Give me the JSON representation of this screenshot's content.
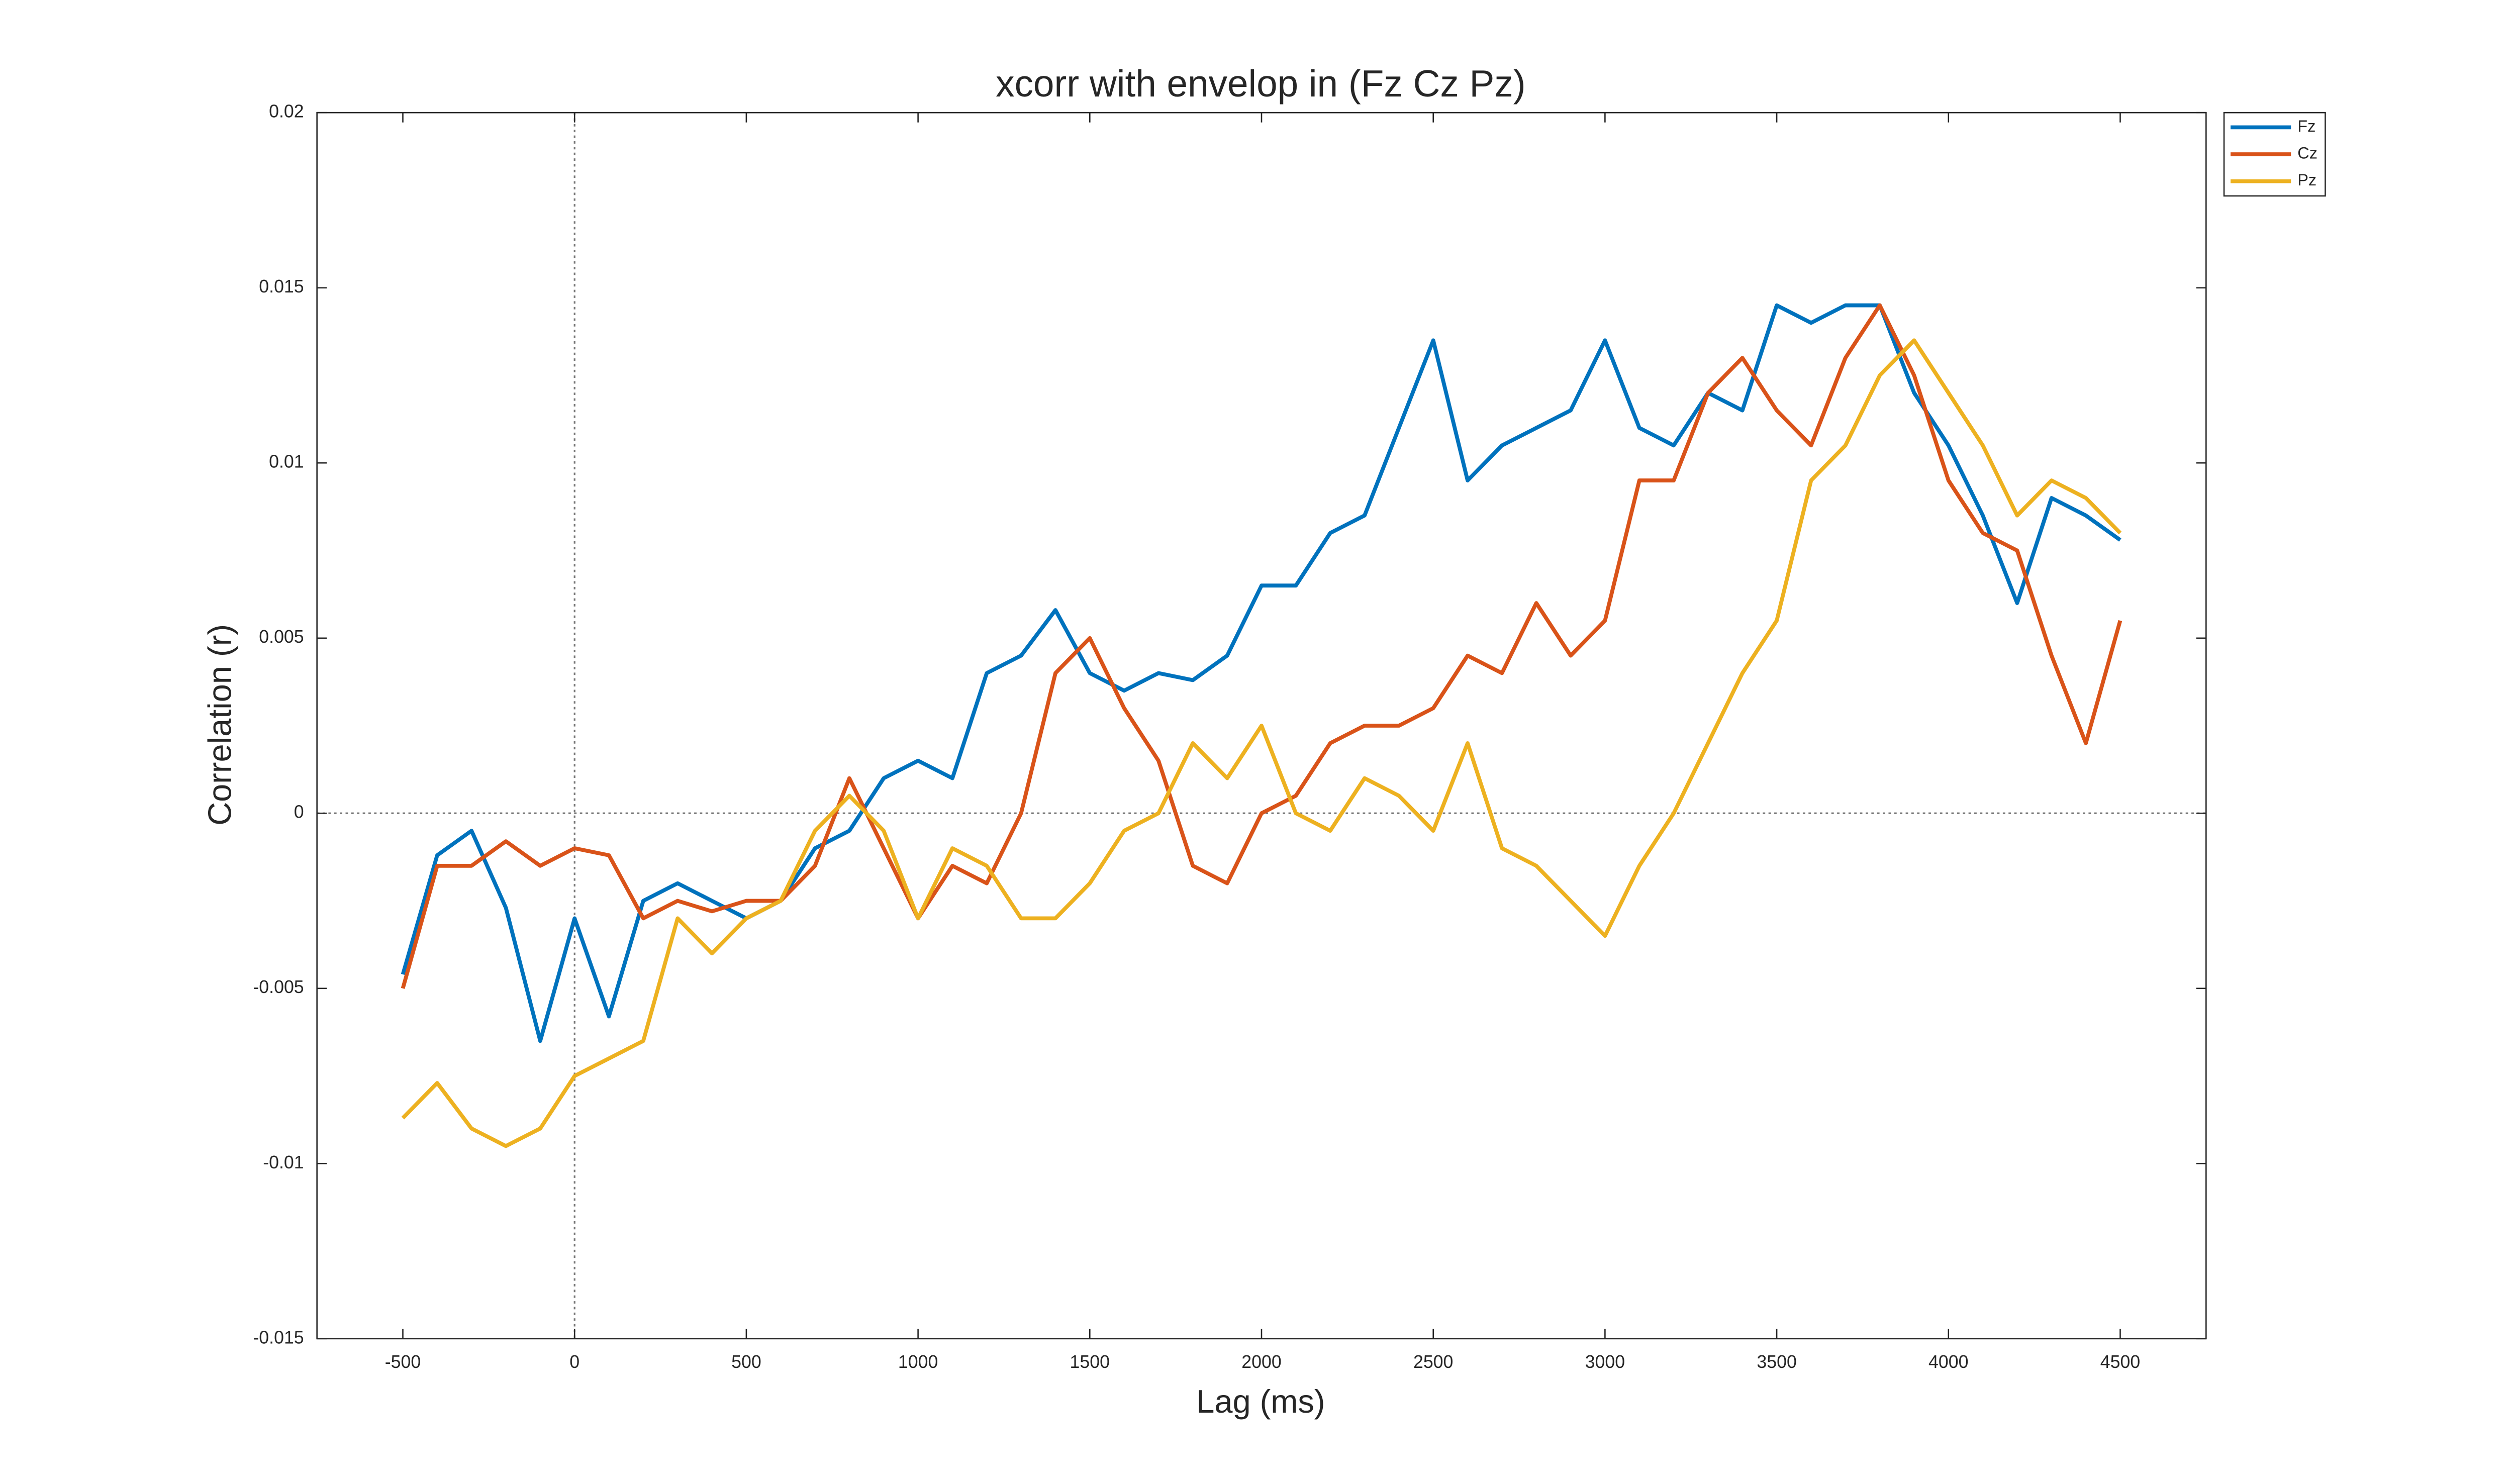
{
  "chart_data": {
    "type": "line",
    "title": "xcorr with envelop in (Fz Cz Pz)",
    "xlabel": "Lag (ms)",
    "ylabel": "Correlation (r)",
    "x": [
      -500,
      -400,
      -300,
      -200,
      -100,
      0,
      100,
      200,
      300,
      400,
      500,
      600,
      700,
      800,
      900,
      1000,
      1100,
      1200,
      1300,
      1400,
      1500,
      1600,
      1700,
      1800,
      1900,
      2000,
      2100,
      2200,
      2300,
      2400,
      2500,
      2600,
      2700,
      2800,
      2900,
      3000,
      3100,
      3200,
      3300,
      3400,
      3500,
      3600,
      3700,
      3800,
      3900,
      4000,
      4100,
      4200,
      4300,
      4400,
      4500
    ],
    "series": [
      {
        "name": "Fz",
        "color": "#0072bd",
        "values": [
          -0.0046,
          -0.0012,
          -0.0005,
          -0.0027,
          -0.0065,
          -0.003,
          -0.0058,
          -0.0025,
          -0.002,
          -0.0025,
          -0.003,
          -0.0025,
          -0.001,
          -0.0005,
          0.001,
          0.0015,
          0.001,
          0.004,
          0.0045,
          0.0058,
          0.004,
          0.0035,
          0.004,
          0.0038,
          0.0045,
          0.0065,
          0.0065,
          0.008,
          0.0085,
          0.011,
          0.0135,
          0.0095,
          0.0105,
          0.011,
          0.0115,
          0.0135,
          0.011,
          0.0105,
          0.012,
          0.0115,
          0.0145,
          0.014,
          0.0145,
          0.0145,
          0.012,
          0.0105,
          0.0085,
          0.006,
          0.009,
          0.0085,
          0.0078
        ]
      },
      {
        "name": "Cz",
        "color": "#d95319",
        "values": [
          -0.005,
          -0.0015,
          -0.0015,
          -0.0008,
          -0.0015,
          -0.001,
          -0.0012,
          -0.003,
          -0.0025,
          -0.0028,
          -0.0025,
          -0.0025,
          -0.0015,
          0.001,
          -0.001,
          -0.003,
          -0.0015,
          -0.002,
          0,
          0.004,
          0.005,
          0.003,
          0.0015,
          -0.0015,
          -0.002,
          0,
          0.0005,
          0.002,
          0.0025,
          0.0025,
          0.003,
          0.0045,
          0.004,
          0.006,
          0.0045,
          0.0055,
          0.0095,
          0.0095,
          0.012,
          0.013,
          0.0115,
          0.0105,
          0.013,
          0.0145,
          0.0125,
          0.0095,
          0.008,
          0.0075,
          0.0045,
          0.002,
          0.0055
        ]
      },
      {
        "name": "Pz",
        "color": "#edb120",
        "values": [
          -0.0087,
          -0.0077,
          -0.009,
          -0.0095,
          -0.009,
          -0.0075,
          -0.007,
          -0.0065,
          -0.003,
          -0.004,
          -0.003,
          -0.0025,
          -0.0005,
          0.0005,
          -0.0005,
          -0.003,
          -0.001,
          -0.0015,
          -0.003,
          -0.003,
          -0.002,
          -0.0005,
          0,
          0.002,
          0.001,
          0.0025,
          0,
          -0.0005,
          0.001,
          0.0005,
          -0.0005,
          0.002,
          -0.001,
          -0.0015,
          -0.0025,
          -0.0035,
          -0.0015,
          0,
          0.002,
          0.004,
          0.0055,
          0.0095,
          0.0105,
          0.0125,
          0.0135,
          0.012,
          0.0105,
          0.0085,
          0.0095,
          0.009,
          0.008
        ]
      }
    ],
    "xlim": [
      -750,
      4750
    ],
    "ylim": [
      -0.015,
      0.02
    ],
    "xticks": [
      -500,
      0,
      500,
      1000,
      1500,
      2000,
      2500,
      3000,
      3500,
      4000,
      4500
    ],
    "yticks": [
      -0.015,
      -0.01,
      -0.005,
      0,
      0.005,
      0.01,
      0.015,
      0.02
    ],
    "zero_lines": true,
    "legend": "northeastoutside"
  }
}
